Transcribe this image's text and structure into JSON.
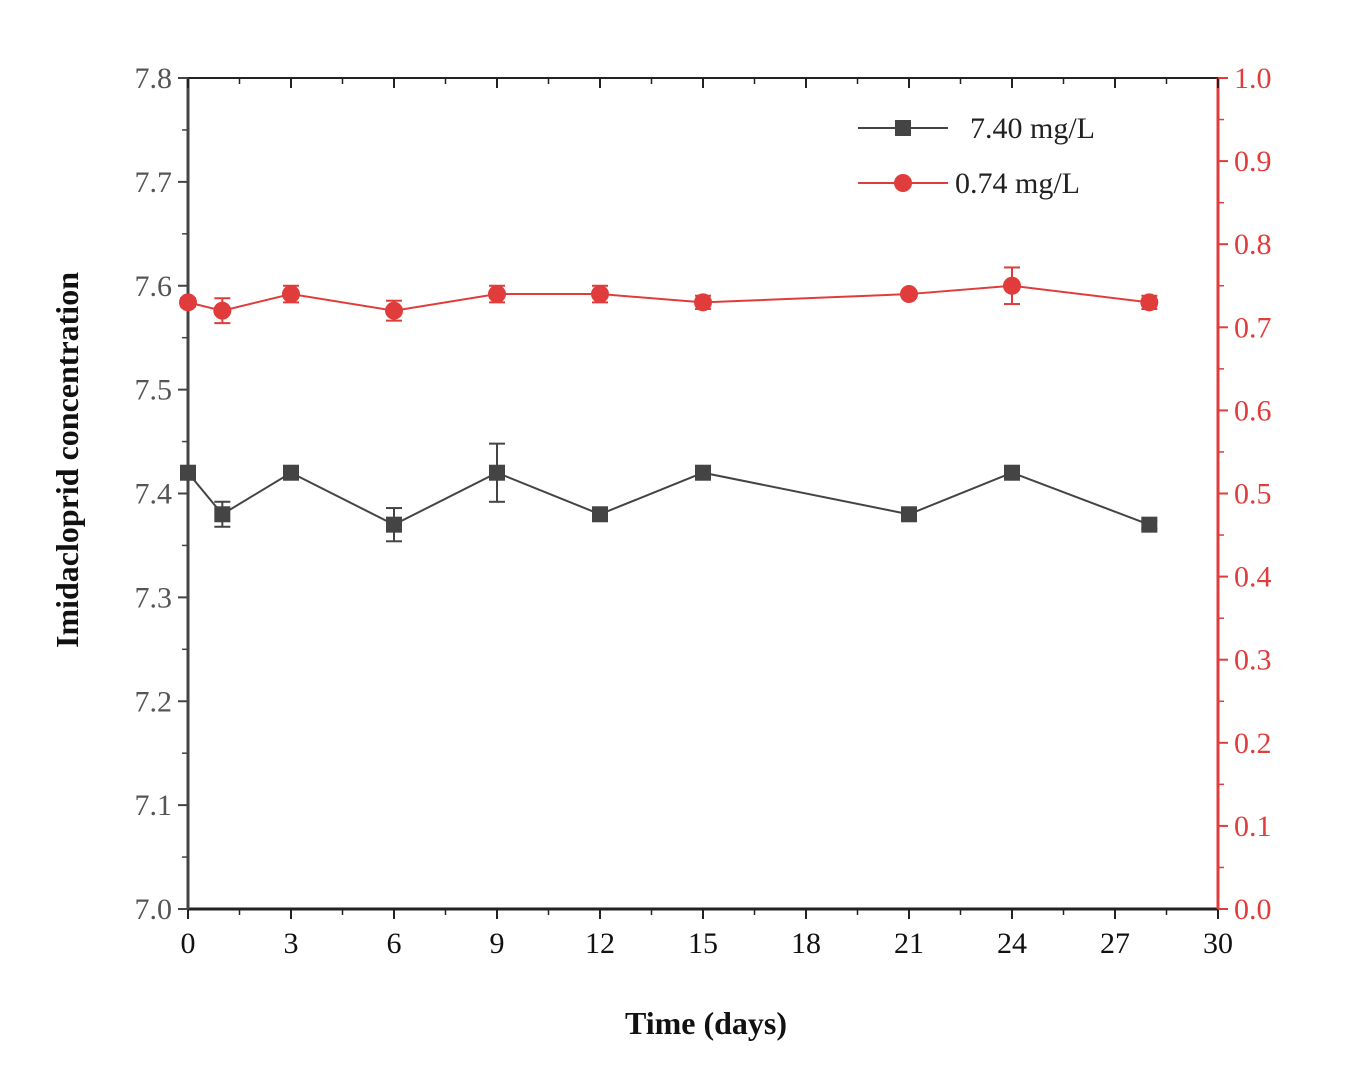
{
  "chart_data": {
    "type": "line",
    "xlabel": "Time (days)",
    "ylabel": "Imidacloprid concentration",
    "x_axis": {
      "range": [
        0,
        30
      ],
      "ticks": [
        0,
        3,
        6,
        9,
        12,
        15,
        18,
        21,
        24,
        27,
        30
      ],
      "tick_labels": [
        "0",
        "3",
        "6",
        "9",
        "12",
        "15",
        "18",
        "21",
        "24",
        "27",
        "30"
      ]
    },
    "y_left": {
      "range": [
        7.0,
        7.8
      ],
      "ticks": [
        7.0,
        7.1,
        7.2,
        7.3,
        7.4,
        7.5,
        7.6,
        7.7,
        7.8
      ],
      "tick_labels": [
        "7.0",
        "7.1",
        "7.2",
        "7.3",
        "7.4",
        "7.5",
        "7.6",
        "7.7",
        "7.8"
      ],
      "color": "#444444"
    },
    "y_right": {
      "range": [
        0.0,
        1.0
      ],
      "ticks": [
        0.0,
        0.1,
        0.2,
        0.3,
        0.4,
        0.5,
        0.6,
        0.7,
        0.8,
        0.9,
        1.0
      ],
      "tick_labels": [
        "0.0",
        "0.1",
        "0.2",
        "0.3",
        "0.4",
        "0.5",
        "0.6",
        "0.7",
        "0.8",
        "0.9",
        "1.0"
      ],
      "color": "#e03c3c"
    },
    "legend_position": "top-right",
    "series": [
      {
        "name": "7.40 mg/L",
        "axis": "left",
        "marker": "square",
        "color": "#444444",
        "x": [
          0,
          1,
          3,
          6,
          9,
          12,
          15,
          21,
          24,
          28
        ],
        "y": [
          7.42,
          7.38,
          7.42,
          7.37,
          7.42,
          7.38,
          7.42,
          7.38,
          7.42,
          7.37
        ],
        "error": [
          0.004,
          0.012,
          0.004,
          0.016,
          0.028,
          0.004,
          0.004,
          0.004,
          0.004,
          0.004
        ]
      },
      {
        "name": "0.74 mg/L",
        "axis": "right",
        "marker": "circle",
        "color": "#e03c3c",
        "x": [
          0,
          1,
          3,
          6,
          9,
          12,
          15,
          21,
          24,
          28
        ],
        "y": [
          0.73,
          0.72,
          0.74,
          0.72,
          0.74,
          0.74,
          0.73,
          0.74,
          0.75,
          0.73
        ],
        "error": [
          0.005,
          0.015,
          0.01,
          0.012,
          0.01,
          0.01,
          0.008,
          0.004,
          0.022,
          0.008
        ]
      }
    ]
  }
}
